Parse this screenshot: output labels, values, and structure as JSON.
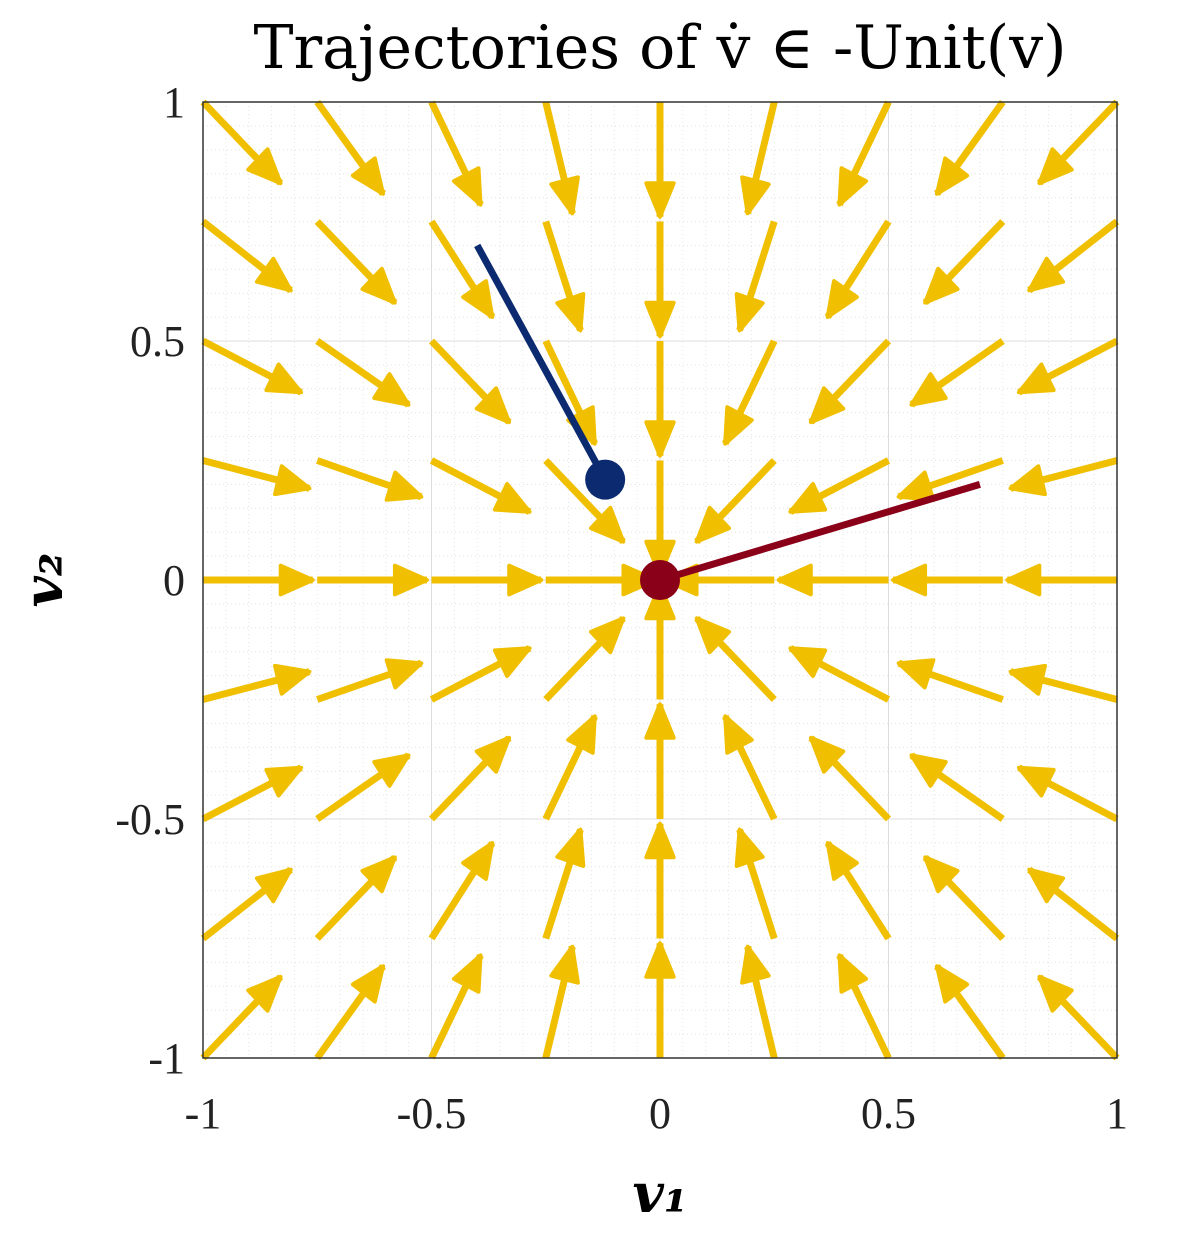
{
  "chart_data": {
    "type": "quiver",
    "title": "Trajectories of v̇ ∈ -Unit(v)",
    "xlabel": "v₁",
    "ylabel": "v₂",
    "xlim": [
      -1,
      1
    ],
    "ylim": [
      -1,
      1
    ],
    "xticks": [
      "-1",
      "-0.5",
      "0",
      "0.5",
      "1"
    ],
    "yticks": [
      "-1",
      "-0.5",
      "0",
      "0.5",
      "1"
    ],
    "xtick_values": [
      -1,
      -0.5,
      0,
      0.5,
      1
    ],
    "ytick_values": [
      -1,
      -0.5,
      0,
      0.5,
      1
    ],
    "grid": true,
    "minor_grid": true,
    "vector_field": {
      "grid_x": [
        -1,
        -0.75,
        -0.5,
        -0.25,
        0,
        0.25,
        0.5,
        0.75,
        1
      ],
      "grid_y": [
        -1,
        -0.75,
        -0.5,
        -0.25,
        0,
        0.25,
        0.5,
        0.75,
        1
      ],
      "field": "-unit(v)",
      "color": "#f0c000"
    },
    "series": [
      {
        "points": [
          [
            -0.4,
            0.7
          ],
          [
            -0.12,
            0.21
          ]
        ],
        "color": "#0b2a6f"
      },
      {
        "points": [
          [
            0.7,
            0.2
          ],
          [
            0.0,
            0.0
          ]
        ],
        "color": "#8b0019"
      }
    ]
  }
}
